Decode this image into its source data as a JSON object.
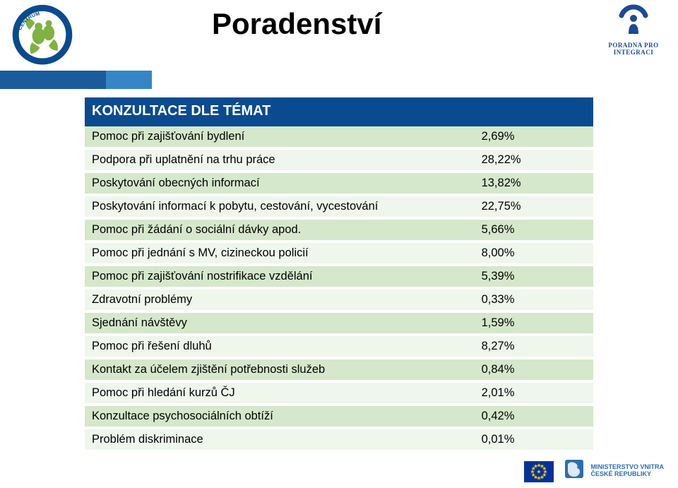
{
  "title": "Poradenství",
  "logo_right_caption": "PORADNA PRO INTEGRACI",
  "table_header": "KONZULTACE DLE TÉMAT",
  "colors": {
    "header_bg": "#0a4b8f",
    "header_text": "#ffffff",
    "row_odd_bg": "#d5e8cb",
    "row_even_bg": "#eff6eb",
    "band1": "#1a5b9c",
    "band2": "#3486c7"
  },
  "rows": [
    {
      "label": "Pomoc při zajišťování bydlení",
      "value": "2,69%"
    },
    {
      "label": "Podpora při uplatnění na trhu práce",
      "value": "28,22%"
    },
    {
      "label": "Poskytování obecných informací",
      "value": "13,82%"
    },
    {
      "label": "Poskytování informací k pobytu, cestování, vycestování",
      "value": "22,75%"
    },
    {
      "label": "Pomoc při žádání o sociální dávky apod.",
      "value": "5,66%"
    },
    {
      "label": "Pomoc při jednání s MV, cizineckou policií",
      "value": "8,00%"
    },
    {
      "label": "Pomoc při zajišťování nostrifikace vzdělání",
      "value": "5,39%"
    },
    {
      "label": "Zdravotní problémy",
      "value": "0,33%"
    },
    {
      "label": "Sjednání návštěvy",
      "value": "1,59%"
    },
    {
      "label": "Pomoc při řešení dluhů",
      "value": "8,27%"
    },
    {
      "label": "Kontakt za účelem zjištění potřebnosti služeb",
      "value": "0,84%"
    },
    {
      "label": "Pomoc při hledání kurzů ČJ",
      "value": "2,01%"
    },
    {
      "label": "Konzultace psychosociálních obtíží",
      "value": "0,42%"
    },
    {
      "label": "Problém diskriminace",
      "value": "0,01%"
    }
  ],
  "footer": {
    "mv_line1": "MINISTERSTVO VNITRA",
    "mv_line2": "ČESKÉ REPUBLIKY"
  }
}
